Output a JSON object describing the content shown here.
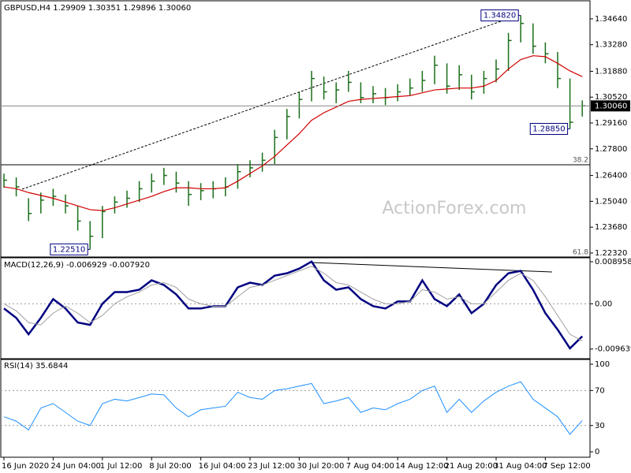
{
  "chart_data": [
    {
      "type": "ohlc",
      "title": "GBPUSD,H4  1.29909 1.30351 1.29896 1.30060",
      "watermark": "ActionForex.com",
      "color": "#1a6e1a",
      "ylim": [
        1.2211,
        1.3559
      ],
      "yticks": [
        {
          "value": 1.3464,
          "label": "1.34640"
        },
        {
          "value": 1.3328,
          "label": "1.33280"
        },
        {
          "value": 1.3188,
          "label": "1.31880"
        },
        {
          "value": 1.3052,
          "label": "1.30520"
        },
        {
          "value": 1.2916,
          "label": "1.29160"
        },
        {
          "value": 1.278,
          "label": "1.27800"
        },
        {
          "value": 1.264,
          "label": "1.26400"
        },
        {
          "value": 1.2504,
          "label": "1.25040"
        },
        {
          "value": 1.2368,
          "label": "1.23680"
        },
        {
          "value": 1.2232,
          "label": "1.22320"
        }
      ],
      "current_price": {
        "value": 1.3006,
        "label": "1.30060"
      },
      "annotations": [
        {
          "value": 1.3482,
          "label": "1.34820"
        },
        {
          "value": 1.2885,
          "label": "1.28850"
        },
        {
          "value": 1.2251,
          "label": "1.22510"
        }
      ],
      "fib_labels": [
        "38.2",
        "61.8"
      ],
      "high": [
        1.265,
        1.263,
        1.252,
        1.255,
        1.257,
        1.254,
        1.248,
        1.24,
        1.248,
        1.253,
        1.256,
        1.261,
        1.265,
        1.268,
        1.266,
        1.261,
        1.26,
        1.261,
        1.263,
        1.27,
        1.272,
        1.276,
        1.288,
        1.299,
        1.308,
        1.319,
        1.316,
        1.313,
        1.319,
        1.313,
        1.311,
        1.31,
        1.312,
        1.315,
        1.319,
        1.327,
        1.323,
        1.322,
        1.317,
        1.319,
        1.325,
        1.339,
        1.3482,
        1.344,
        1.334,
        1.329,
        1.315,
        1.3035
      ],
      "low": [
        1.2575,
        1.253,
        1.24,
        1.244,
        1.248,
        1.244,
        1.235,
        1.2251,
        1.231,
        1.244,
        1.247,
        1.25,
        1.255,
        1.259,
        1.255,
        1.248,
        1.251,
        1.252,
        1.253,
        1.257,
        1.263,
        1.266,
        1.27,
        1.283,
        1.294,
        1.303,
        1.304,
        1.302,
        1.308,
        1.302,
        1.302,
        1.301,
        1.303,
        1.306,
        1.308,
        1.312,
        1.307,
        1.309,
        1.304,
        1.307,
        1.313,
        1.319,
        1.334,
        1.328,
        1.323,
        1.31,
        1.2885,
        1.295
      ],
      "close": [
        1.2615,
        1.258,
        1.244,
        1.251,
        1.253,
        1.248,
        1.24,
        1.232,
        1.245,
        1.25,
        1.252,
        1.257,
        1.261,
        1.264,
        1.26,
        1.254,
        1.256,
        1.257,
        1.258,
        1.266,
        1.268,
        1.272,
        1.284,
        1.295,
        1.304,
        1.315,
        1.308,
        1.309,
        1.313,
        1.305,
        1.307,
        1.305,
        1.308,
        1.31,
        1.314,
        1.322,
        1.311,
        1.317,
        1.308,
        1.315,
        1.32,
        1.335,
        1.344,
        1.332,
        1.328,
        1.315,
        1.292,
        1.3006
      ],
      "ma": {
        "color": "#d00000",
        "values": [
          1.258,
          1.257,
          1.255,
          1.2535,
          1.252,
          1.25,
          1.248,
          1.246,
          1.2455,
          1.247,
          1.249,
          1.251,
          1.253,
          1.2555,
          1.2575,
          1.2575,
          1.257,
          1.257,
          1.2575,
          1.261,
          1.265,
          1.269,
          1.274,
          1.28,
          1.286,
          1.293,
          1.297,
          1.3,
          1.303,
          1.304,
          1.3045,
          1.305,
          1.3055,
          1.306,
          1.3075,
          1.309,
          1.3095,
          1.31,
          1.31,
          1.311,
          1.314,
          1.32,
          1.325,
          1.327,
          1.3265,
          1.323,
          1.319,
          1.316
        ]
      }
    },
    {
      "type": "line",
      "title": "MACD(12,26,9) -0.006929 -0.007920",
      "ylim": [
        -0.0117,
        0.0098
      ],
      "yticks": [
        0.008958,
        {
          "value": 0,
          "label": "0.00"
        },
        -0.009639
      ],
      "levels": [
        0
      ],
      "series": [
        {
          "color": "#000080",
          "width": 2.5,
          "values": [
            -0.001,
            -0.003,
            -0.0065,
            -0.003,
            0.001,
            -0.001,
            -0.004,
            -0.0045,
            0,
            0.0025,
            0.0025,
            0.003,
            0.005,
            0.004,
            0.002,
            -0.001,
            -0.001,
            -0.0005,
            -0.0005,
            0.0035,
            0.0045,
            0.004,
            0.006,
            0.0065,
            0.0075,
            0.009,
            0.005,
            0.003,
            0.0035,
            0.001,
            -0.0005,
            -0.001,
            0.0005,
            0.0005,
            0.005,
            0.001,
            -0.0005,
            0.002,
            -0.002,
            0,
            0.004,
            0.0065,
            0.007,
            0.003,
            -0.002,
            -0.0055,
            -0.0095,
            -0.006929
          ]
        },
        {
          "color": "#a0a0a0",
          "width": 1,
          "values": [
            0,
            -0.0015,
            -0.004,
            -0.0045,
            -0.002,
            -0.0005,
            -0.002,
            -0.004,
            -0.0025,
            0,
            0.0015,
            0.0025,
            0.004,
            0.0045,
            0.0035,
            0.001,
            0,
            -0.0005,
            -0.0005,
            0.0015,
            0.0035,
            0.004,
            0.005,
            0.006,
            0.007,
            0.008,
            0.0065,
            0.0045,
            0.004,
            0.0025,
            0.001,
            0,
            0,
            0.0005,
            0.003,
            0.0025,
            0.001,
            0.0015,
            0,
            0,
            0.0025,
            0.005,
            0.0065,
            0.005,
            0.0015,
            -0.0025,
            -0.0065,
            -0.00792
          ]
        }
      ]
    },
    {
      "type": "line",
      "title": "RSI(14) 35.6844",
      "ylim": [
        -6.2,
        105.4
      ],
      "yticks": [
        100,
        70,
        30,
        0
      ],
      "levels": [
        70,
        30
      ],
      "series": [
        {
          "color": "#1e90ff",
          "width": 1,
          "values": [
            40,
            35,
            25,
            50,
            55,
            45,
            35,
            30,
            55,
            60,
            58,
            62,
            66,
            65,
            50,
            40,
            48,
            50,
            52,
            68,
            62,
            60,
            70,
            72,
            75,
            78,
            55,
            58,
            62,
            45,
            50,
            48,
            55,
            60,
            70,
            75,
            45,
            60,
            45,
            58,
            68,
            75,
            80,
            60,
            50,
            40,
            20,
            35.6844
          ]
        }
      ],
      "categories": [
        "16 Jun 2020",
        null,
        null,
        null,
        "24 Jun 04:00",
        null,
        null,
        null,
        "1 Jul 12:00",
        null,
        null,
        null,
        "8 Jul 20:00",
        null,
        null,
        null,
        "16 Jul 04:00",
        null,
        null,
        null,
        "23 Jul 12:00",
        null,
        null,
        null,
        "30 Jul 20:00",
        null,
        null,
        null,
        "7 Aug 04:00",
        null,
        null,
        null,
        "14 Aug 12:00",
        null,
        null,
        null,
        "21 Aug 20:00",
        null,
        null,
        null,
        "31 Aug 04:00",
        null,
        null,
        null,
        "7 Sep 12:00",
        null,
        null,
        null
      ]
    }
  ]
}
